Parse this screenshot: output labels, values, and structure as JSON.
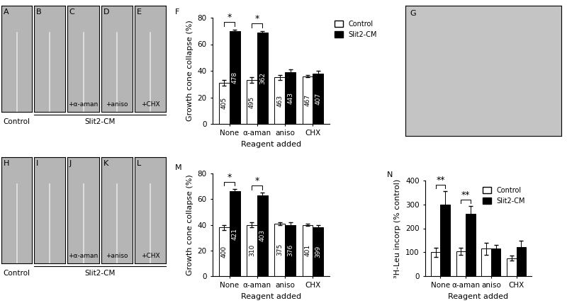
{
  "chart_data": [
    {
      "panel": "F",
      "type": "bar",
      "x_label": "Reagent added",
      "y_label": "Growth cone collapse (%)",
      "categories": [
        "None",
        "α-aman",
        "aniso",
        "CHX"
      ],
      "series": [
        {
          "name": "Control",
          "color": "#ffffff",
          "values": [
            31,
            33,
            35,
            36
          ],
          "errors": [
            2,
            2,
            2,
            1
          ],
          "n": [
            405,
            495,
            463,
            467
          ]
        },
        {
          "name": "Slit2-CM",
          "color": "#000000",
          "values": [
            70,
            69,
            39,
            38
          ],
          "errors": [
            1,
            1,
            2,
            2
          ],
          "n": [
            478,
            362,
            443,
            407
          ]
        }
      ],
      "significance": [
        "*",
        "*",
        null,
        null
      ],
      "ylim": [
        0,
        80
      ],
      "yticks": [
        0,
        20,
        40,
        60,
        80
      ],
      "legend": "upper left"
    },
    {
      "panel": "M",
      "type": "bar",
      "x_label": "Reagent added",
      "y_label": "Growth cone collapse (%)",
      "categories": [
        "None",
        "α-aman",
        "aniso",
        "CHX"
      ],
      "series": [
        {
          "name": "Control",
          "color": "#ffffff",
          "values": [
            38,
            40,
            41,
            40
          ],
          "errors": [
            2,
            2,
            1,
            1
          ],
          "n": [
            400,
            310,
            375,
            401
          ]
        },
        {
          "name": "Slit2-CM",
          "color": "#000000",
          "values": [
            66,
            63,
            40,
            38
          ],
          "errors": [
            2,
            2,
            2,
            2
          ],
          "n": [
            421,
            403,
            376,
            399
          ]
        }
      ],
      "significance": [
        "*",
        "*",
        null,
        null
      ],
      "ylim": [
        0,
        80
      ],
      "yticks": [
        0,
        20,
        40,
        60,
        80
      ]
    },
    {
      "panel": "N",
      "type": "bar",
      "x_label": "Reagent added",
      "y_label": "³H-Leu incorp (% control)",
      "categories": [
        "None",
        "α-aman",
        "aniso",
        "CHX"
      ],
      "series": [
        {
          "name": "Control",
          "color": "#ffffff",
          "values": [
            100,
            105,
            115,
            75
          ],
          "errors": [
            20,
            15,
            25,
            10
          ]
        },
        {
          "name": "Slit2-CM",
          "color": "#000000",
          "values": [
            300,
            262,
            115,
            122
          ],
          "errors": [
            55,
            30,
            15,
            25
          ]
        }
      ],
      "significance": [
        "**",
        "**",
        null,
        null
      ],
      "ylim": [
        0,
        400
      ],
      "yticks": [
        0,
        100,
        200,
        300,
        400
      ],
      "legend": "upper right"
    }
  ],
  "image_rows": [
    {
      "panels": [
        {
          "label": "A"
        },
        {
          "label": "B"
        },
        {
          "label": "C",
          "text": "+α-aman"
        },
        {
          "label": "D",
          "text": "+aniso"
        },
        {
          "label": "E",
          "text": "+CHX"
        }
      ],
      "captions": [
        "Control",
        "Slit2-CM"
      ]
    },
    {
      "panels": [
        {
          "label": "H"
        },
        {
          "label": "I"
        },
        {
          "label": "J",
          "text": "+α-aman"
        },
        {
          "label": "K",
          "text": "+aniso"
        },
        {
          "label": "L",
          "text": "+CHX"
        }
      ],
      "captions": [
        "Control",
        "Slit2-CM"
      ]
    }
  ],
  "image_single": {
    "label": "G"
  }
}
